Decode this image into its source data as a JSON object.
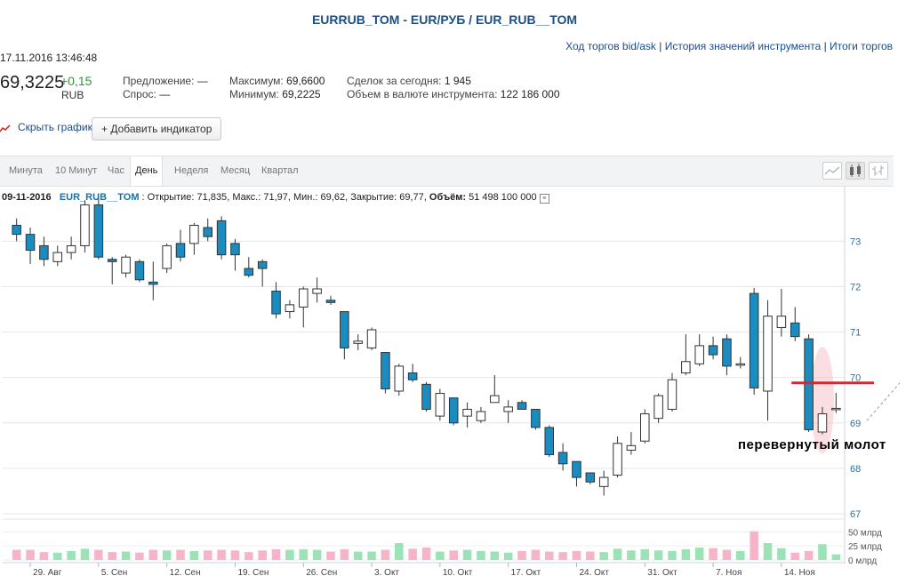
{
  "header": {
    "title": "EURRUB_TOM - EUR/РУБ / EUR_RUB__TOM",
    "links": [
      "Ход торгов bid/ask",
      "История значений инструмента",
      "Итоги торгов"
    ],
    "datetime": "17.11.2016 13:46:48",
    "price": "69,3225",
    "change": "+0,15",
    "currency": "RUB"
  },
  "info": {
    "offer_label": "Предложение:",
    "offer_value": "—",
    "demand_label": "Спрос:",
    "demand_value": "—",
    "max_label": "Максимум:",
    "max_value": "69,6600",
    "min_label": "Минимум:",
    "min_value": "69,2225",
    "deals_label": "Сделок за сегодня:",
    "deals_value": "1 945",
    "volume_label": "Объем в валюте инструмента:",
    "volume_value": "122 186 000"
  },
  "controls": {
    "hide_chart": "Скрыть график",
    "add_indicator": "+ Добавить индикатор",
    "tabs": [
      "Минута",
      "10 Минут",
      "Час",
      "День",
      "Неделя",
      "Месяц",
      "Квартал"
    ],
    "active_tab": "День",
    "chart_types": [
      "line-chart-icon",
      "candlestick-icon",
      "ohlc-bars-icon"
    ]
  },
  "ohlc_bar": {
    "date": "09-11-2016",
    "symbol": "EUR_RUB__TOM",
    "open_label": "Открытие:",
    "open": "71,835",
    "high_label": "Макс.:",
    "high": "71,97",
    "low_label": "Мин.:",
    "low": "69,62",
    "close_label": "Закрытие:",
    "close": "69,77",
    "vol_label": "Объём:",
    "vol": "51 498 100 000"
  },
  "annotation": "перевернутый молот",
  "colors": {
    "up": "#ffffff",
    "down": "#1a8cc0",
    "vol_up": "#9be3b5",
    "vol_down": "#f7b3c8",
    "red_line": "#e8202a",
    "highlight": "#f5b5bd"
  },
  "chart_data": {
    "type": "candlestick",
    "y_ticks": [
      67,
      68,
      69,
      70,
      71,
      72,
      73
    ],
    "ylim": [
      67,
      74.2
    ],
    "volume_ticks": [
      "0 млрд",
      "25 млрд",
      "50 млрд"
    ],
    "volume_max": 60,
    "x_ticks": [
      "29. Авг",
      "5. Сен",
      "12. Сен",
      "19. Сен",
      "26. Сен",
      "3. Окт",
      "10. Окт",
      "17. Окт",
      "24. Окт",
      "31. Окт",
      "7. Ноя",
      "14. Ноя"
    ],
    "candles": [
      {
        "o": 73.35,
        "h": 73.5,
        "l": 73.0,
        "c": 73.15,
        "v": 18
      },
      {
        "o": 73.15,
        "h": 73.3,
        "l": 72.5,
        "c": 72.8,
        "v": 18
      },
      {
        "o": 72.9,
        "h": 73.1,
        "l": 72.45,
        "c": 72.6,
        "v": 14
      },
      {
        "o": 72.55,
        "h": 72.9,
        "l": 72.45,
        "c": 72.75,
        "v": 13
      },
      {
        "o": 72.75,
        "h": 73.1,
        "l": 72.6,
        "c": 72.9,
        "v": 16
      },
      {
        "o": 72.9,
        "h": 73.9,
        "l": 72.75,
        "c": 73.8,
        "v": 20
      },
      {
        "o": 73.8,
        "h": 73.95,
        "l": 72.6,
        "c": 72.65,
        "v": 18
      },
      {
        "o": 72.6,
        "h": 72.65,
        "l": 72.05,
        "c": 72.55,
        "v": 14
      },
      {
        "o": 72.3,
        "h": 72.7,
        "l": 72.2,
        "c": 72.65,
        "v": 15
      },
      {
        "o": 72.55,
        "h": 72.6,
        "l": 72.1,
        "c": 72.15,
        "v": 13
      },
      {
        "o": 72.1,
        "h": 72.55,
        "l": 71.7,
        "c": 72.05,
        "v": 18
      },
      {
        "o": 72.4,
        "h": 72.95,
        "l": 72.3,
        "c": 72.9,
        "v": 17
      },
      {
        "o": 72.95,
        "h": 73.25,
        "l": 72.55,
        "c": 72.65,
        "v": 18
      },
      {
        "o": 72.95,
        "h": 73.4,
        "l": 72.7,
        "c": 73.35,
        "v": 16
      },
      {
        "o": 73.3,
        "h": 73.5,
        "l": 73.0,
        "c": 73.1,
        "v": 17
      },
      {
        "o": 73.45,
        "h": 73.55,
        "l": 72.6,
        "c": 72.7,
        "v": 18
      },
      {
        "o": 72.95,
        "h": 73.05,
        "l": 72.35,
        "c": 72.7,
        "v": 17
      },
      {
        "o": 72.4,
        "h": 72.65,
        "l": 72.2,
        "c": 72.25,
        "v": 14
      },
      {
        "o": 72.55,
        "h": 72.6,
        "l": 72.0,
        "c": 72.4,
        "v": 17
      },
      {
        "o": 71.9,
        "h": 72.1,
        "l": 71.3,
        "c": 71.4,
        "v": 19
      },
      {
        "o": 71.45,
        "h": 71.7,
        "l": 71.3,
        "c": 71.6,
        "v": 18
      },
      {
        "o": 71.55,
        "h": 72.0,
        "l": 71.1,
        "c": 71.95,
        "v": 19
      },
      {
        "o": 71.85,
        "h": 72.2,
        "l": 71.65,
        "c": 71.95,
        "v": 18
      },
      {
        "o": 71.7,
        "h": 71.8,
        "l": 71.6,
        "c": 71.65,
        "v": 15
      },
      {
        "o": 71.45,
        "h": 71.45,
        "l": 70.4,
        "c": 70.65,
        "v": 19
      },
      {
        "o": 70.75,
        "h": 70.95,
        "l": 70.6,
        "c": 70.8,
        "v": 15
      },
      {
        "o": 70.65,
        "h": 71.1,
        "l": 70.6,
        "c": 71.05,
        "v": 15
      },
      {
        "o": 70.55,
        "h": 70.55,
        "l": 69.65,
        "c": 69.75,
        "v": 18
      },
      {
        "o": 69.7,
        "h": 70.3,
        "l": 69.6,
        "c": 70.25,
        "v": 30
      },
      {
        "o": 70.1,
        "h": 70.3,
        "l": 69.9,
        "c": 69.95,
        "v": 20
      },
      {
        "o": 69.85,
        "h": 69.9,
        "l": 69.25,
        "c": 69.3,
        "v": 22
      },
      {
        "o": 69.15,
        "h": 69.75,
        "l": 69.05,
        "c": 69.65,
        "v": 15
      },
      {
        "o": 69.55,
        "h": 69.55,
        "l": 68.95,
        "c": 69.0,
        "v": 17
      },
      {
        "o": 69.15,
        "h": 69.45,
        "l": 68.9,
        "c": 69.3,
        "v": 18
      },
      {
        "o": 69.05,
        "h": 69.35,
        "l": 69.0,
        "c": 69.25,
        "v": 16
      },
      {
        "o": 69.45,
        "h": 70.05,
        "l": 69.45,
        "c": 69.6,
        "v": 15
      },
      {
        "o": 69.25,
        "h": 69.5,
        "l": 69.0,
        "c": 69.35,
        "v": 13
      },
      {
        "o": 69.45,
        "h": 69.5,
        "l": 69.3,
        "c": 69.3,
        "v": 16
      },
      {
        "o": 69.3,
        "h": 69.3,
        "l": 68.85,
        "c": 68.9,
        "v": 18
      },
      {
        "o": 68.9,
        "h": 68.95,
        "l": 68.25,
        "c": 68.3,
        "v": 15
      },
      {
        "o": 68.35,
        "h": 68.55,
        "l": 67.95,
        "c": 68.1,
        "v": 14
      },
      {
        "o": 68.15,
        "h": 68.15,
        "l": 67.6,
        "c": 67.8,
        "v": 16
      },
      {
        "o": 67.9,
        "h": 67.9,
        "l": 67.65,
        "c": 67.7,
        "v": 15
      },
      {
        "o": 67.6,
        "h": 67.95,
        "l": 67.4,
        "c": 67.8,
        "v": 14
      },
      {
        "o": 67.85,
        "h": 68.7,
        "l": 67.8,
        "c": 68.55,
        "v": 20
      },
      {
        "o": 68.4,
        "h": 68.8,
        "l": 68.3,
        "c": 68.5,
        "v": 17
      },
      {
        "o": 68.6,
        "h": 69.3,
        "l": 68.55,
        "c": 69.2,
        "v": 19
      },
      {
        "o": 69.1,
        "h": 69.65,
        "l": 69.0,
        "c": 69.6,
        "v": 17
      },
      {
        "o": 69.3,
        "h": 70.1,
        "l": 69.25,
        "c": 69.95,
        "v": 16
      },
      {
        "o": 70.1,
        "h": 70.95,
        "l": 70.05,
        "c": 70.35,
        "v": 19
      },
      {
        "o": 70.3,
        "h": 70.95,
        "l": 70.25,
        "c": 70.7,
        "v": 22
      },
      {
        "o": 70.7,
        "h": 70.9,
        "l": 70.4,
        "c": 70.5,
        "v": 21
      },
      {
        "o": 70.85,
        "h": 70.95,
        "l": 70.05,
        "c": 70.25,
        "v": 18
      },
      {
        "o": 70.3,
        "h": 70.45,
        "l": 70.2,
        "c": 70.3,
        "v": 16
      },
      {
        "o": 71.85,
        "h": 71.97,
        "l": 69.62,
        "c": 69.77,
        "v": 51
      },
      {
        "o": 69.7,
        "h": 71.7,
        "l": 69.05,
        "c": 71.35,
        "v": 30
      },
      {
        "o": 71.1,
        "h": 71.95,
        "l": 70.9,
        "c": 71.35,
        "v": 21
      },
      {
        "o": 71.2,
        "h": 71.55,
        "l": 70.8,
        "c": 70.9,
        "v": 13
      },
      {
        "o": 70.85,
        "h": 70.95,
        "l": 68.8,
        "c": 68.85,
        "v": 16
      },
      {
        "o": 68.8,
        "h": 69.35,
        "l": 68.75,
        "c": 69.2,
        "v": 28
      },
      {
        "o": 69.3,
        "h": 69.66,
        "l": 69.22,
        "c": 69.32,
        "v": 10
      }
    ]
  }
}
